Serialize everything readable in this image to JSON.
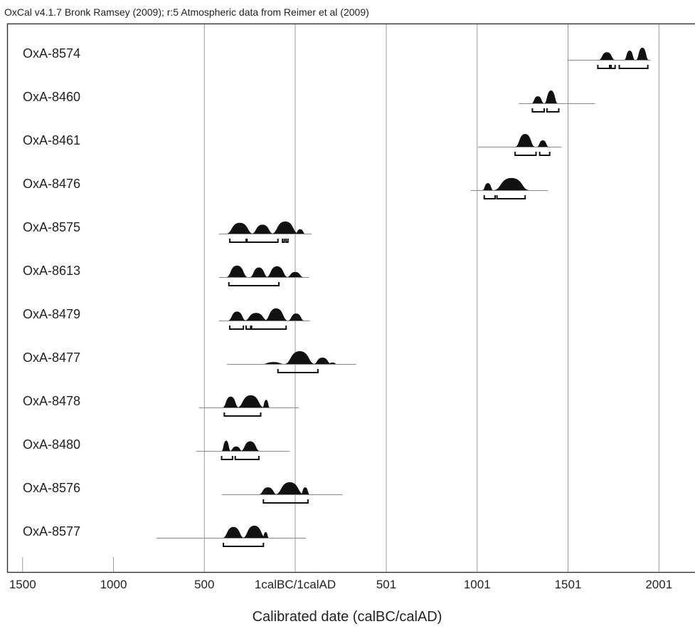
{
  "chart_data": {
    "type": "ranges",
    "title": "OxCal v4.1.7 Bronk Ramsey (2009); r:5 Atmospheric data from Reimer et al (2009)",
    "xlabel": "Calibrated date (calBC/calAD)",
    "ylabel": "",
    "xlim": [
      -1600,
      2200
    ],
    "grid": true,
    "x_ticks": [
      {
        "value": -1500,
        "label": "1500"
      },
      {
        "value": -1000,
        "label": "1000"
      },
      {
        "value": -500,
        "label": "500"
      },
      {
        "value": 0,
        "label": "1calBC/1calAD"
      },
      {
        "value": 501,
        "label": "501"
      },
      {
        "value": 1001,
        "label": "1001"
      },
      {
        "value": 1501,
        "label": "1501"
      },
      {
        "value": 2001,
        "label": "2001"
      }
    ],
    "gridlines": [
      -500,
      0,
      501,
      1001,
      1501,
      2001
    ],
    "minor_ticks": [
      -1500,
      -1000
    ],
    "series": [
      {
        "name": "OxA-8574",
        "full_range": [
          1500,
          1955
        ],
        "peaks": [
          [
            1670,
            1760,
            0.6
          ],
          [
            1810,
            1870,
            0.72
          ],
          [
            1875,
            1945,
            0.95
          ]
        ],
        "ranges": [
          [
            1665,
            1730
          ],
          [
            1738,
            1760
          ],
          [
            1783,
            1940
          ]
        ]
      },
      {
        "name": "OxA-8460",
        "full_range": [
          1230,
          1650
        ],
        "peaks": [
          [
            1300,
            1370,
            0.55
          ],
          [
            1370,
            1445,
            1.0
          ]
        ],
        "ranges": [
          [
            1305,
            1370
          ],
          [
            1385,
            1450
          ]
        ]
      },
      {
        "name": "OxA-8461",
        "full_range": [
          1005,
          1465
        ],
        "peaks": [
          [
            1210,
            1320,
            1.0
          ],
          [
            1330,
            1395,
            0.5
          ]
        ],
        "ranges": [
          [
            1210,
            1325
          ],
          [
            1345,
            1400
          ]
        ]
      },
      {
        "name": "OxA-8476",
        "full_range": [
          965,
          1390
        ],
        "peaks": [
          [
            1030,
            1090,
            0.55
          ],
          [
            1090,
            1290,
            0.95
          ]
        ],
        "ranges": [
          [
            1040,
            1100
          ],
          [
            1110,
            1265
          ]
        ]
      },
      {
        "name": "OxA-8575",
        "full_range": [
          -420,
          90
        ],
        "peaks": [
          [
            -380,
            -230,
            0.85
          ],
          [
            -240,
            -120,
            0.7
          ],
          [
            -130,
            20,
            0.95
          ],
          [
            0,
            55,
            0.35
          ]
        ],
        "ranges": [
          [
            -360,
            -270
          ],
          [
            -265,
            -95
          ],
          [
            -70,
            -60
          ],
          [
            -50,
            -40
          ]
        ]
      },
      {
        "name": "OxA-8613",
        "full_range": [
          -420,
          75
        ],
        "peaks": [
          [
            -380,
            -260,
            0.9
          ],
          [
            -250,
            -150,
            0.75
          ],
          [
            -160,
            -40,
            0.85
          ],
          [
            -45,
            45,
            0.4
          ]
        ],
        "ranges": [
          [
            -365,
            -90
          ]
        ]
      },
      {
        "name": "OxA-8479",
        "full_range": [
          -420,
          80
        ],
        "peaks": [
          [
            -370,
            -270,
            0.7
          ],
          [
            -280,
            -150,
            0.6
          ],
          [
            -170,
            -40,
            0.95
          ],
          [
            -40,
            50,
            0.55
          ]
        ],
        "ranges": [
          [
            -360,
            -285
          ],
          [
            -270,
            -245
          ],
          [
            -240,
            -50
          ]
        ]
      },
      {
        "name": "OxA-8477",
        "full_range": [
          -375,
          335
        ],
        "peaks": [
          [
            -180,
            -60,
            0.15
          ],
          [
            -60,
            110,
            1.0
          ],
          [
            100,
            200,
            0.5
          ],
          [
            180,
            230,
            0.12
          ]
        ],
        "ranges": [
          [
            -95,
            125
          ]
        ]
      },
      {
        "name": "OxA-8478",
        "full_range": [
          -530,
          20
        ],
        "peaks": [
          [
            -400,
            -310,
            0.85
          ],
          [
            -320,
            -170,
            0.95
          ],
          [
            -180,
            -140,
            0.6
          ]
        ],
        "ranges": [
          [
            -390,
            -190
          ]
        ]
      },
      {
        "name": "OxA-8480",
        "full_range": [
          -545,
          -30
        ],
        "peaks": [
          [
            -405,
            -355,
            0.8
          ],
          [
            -360,
            -290,
            0.35
          ],
          [
            -300,
            -195,
            0.75
          ]
        ],
        "ranges": [
          [
            -405,
            -345
          ],
          [
            -330,
            -200
          ]
        ]
      },
      {
        "name": "OxA-8576",
        "full_range": [
          -405,
          260
        ],
        "peaks": [
          [
            -200,
            -100,
            0.55
          ],
          [
            -110,
            50,
            0.95
          ],
          [
            30,
            80,
            0.55
          ]
        ],
        "ranges": [
          [
            -175,
            70
          ]
        ]
      },
      {
        "name": "OxA-8577",
        "full_range": [
          -765,
          60
        ],
        "peaks": [
          [
            -400,
            -280,
            0.85
          ],
          [
            -290,
            -160,
            0.95
          ],
          [
            -180,
            -145,
            0.45
          ]
        ],
        "ranges": [
          [
            -395,
            -175
          ]
        ]
      }
    ]
  }
}
